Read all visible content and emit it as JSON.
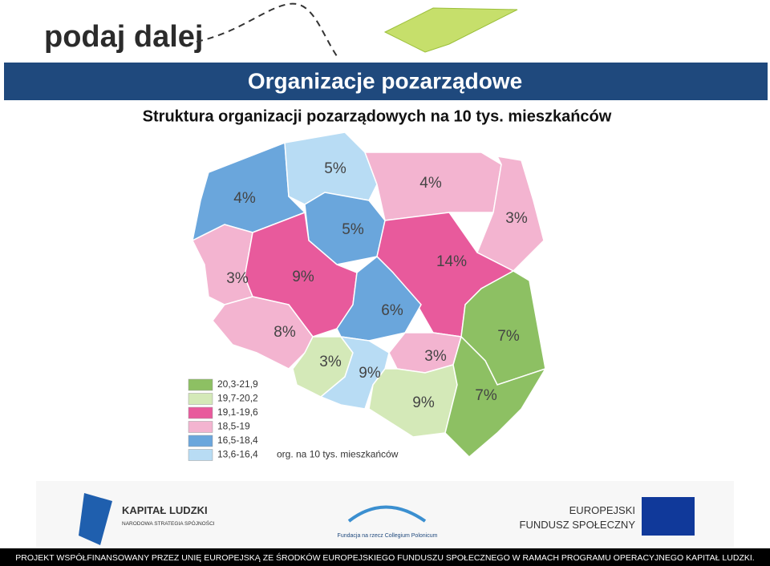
{
  "header": {
    "logo": "podaj dalej",
    "title": "Organizacje pozarządowe",
    "subtitle": "Struktura organizacji pozarządowych na 10 tys. mieszkańców"
  },
  "map": {
    "regions": [
      {
        "label": "4%",
        "color": "#6aa6dc"
      },
      {
        "label": "5%",
        "color": "#b8dcf4"
      },
      {
        "label": "4%",
        "color": "#f3b4d0"
      },
      {
        "label": "3%",
        "color": "#f3b4d0"
      },
      {
        "label": "5%",
        "color": "#6aa6dc"
      },
      {
        "label": "3%",
        "color": "#f3b4d0"
      },
      {
        "label": "9%",
        "color": "#e85a9c"
      },
      {
        "label": "14%",
        "color": "#e85a9c"
      },
      {
        "label": "6%",
        "color": "#6aa6dc"
      },
      {
        "label": "8%",
        "color": "#f3b4d0"
      },
      {
        "label": "3%",
        "color": "#d4e9b8"
      },
      {
        "label": "9%",
        "color": "#b8dcf4"
      },
      {
        "label": "3%",
        "color": "#f3b4d0"
      },
      {
        "label": "7%",
        "color": "#8dc063"
      },
      {
        "label": "9%",
        "color": "#d4e9b8"
      },
      {
        "label": "7%",
        "color": "#8dc063"
      }
    ],
    "legend": [
      {
        "label": "20,3-21,9",
        "color": "#8dc063"
      },
      {
        "label": "19,7-20,2",
        "color": "#d4e9b8"
      },
      {
        "label": "19,1-19,6",
        "color": "#e85a9c"
      },
      {
        "label": "18,5-19",
        "color": "#f3b4d0"
      },
      {
        "label": "16,5-18,4",
        "color": "#6aa6dc"
      },
      {
        "label": "13,6-16,4",
        "color": "#b8dcf4"
      }
    ],
    "legend_note": "org. na 10 tys. mieszkańców"
  },
  "footer": {
    "kl_title": "KAPITAŁ LUDZKI",
    "kl_sub": "NARODOWA STRATEGIA SPÓJNOŚCI",
    "foundation": "Fundacja na rzecz Collegium Polonicum",
    "efs_1": "EUROPEJSKI",
    "efs_2": "FUNDUSZ SPOŁECZNY",
    "bar": "PROJEKT WSPÓŁFINANSOWANY PRZEZ UNIĘ EUROPEJSKĄ ZE ŚRODKÓW EUROPEJSKIEGO FUNDUSZU SPOŁECZNEGO W RAMACH PROGRAMU OPERACYJNEGO KAPITAŁ LUDZKI."
  }
}
